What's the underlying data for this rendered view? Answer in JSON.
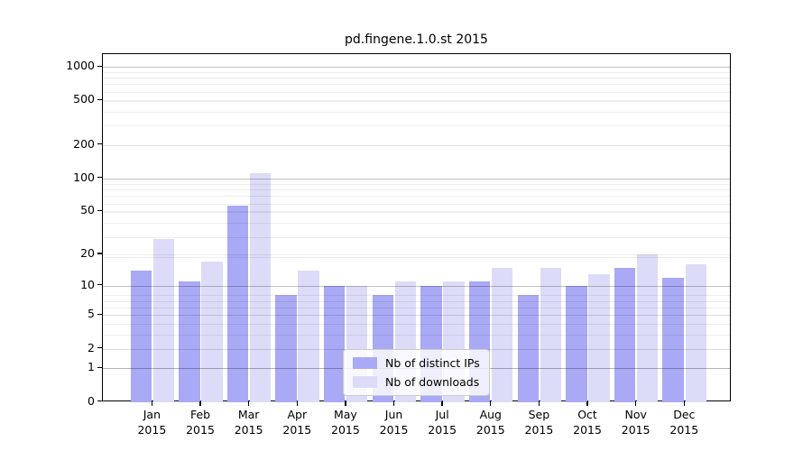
{
  "chart_data": {
    "type": "bar",
    "title": "pd.fingene.1.0.st 2015",
    "categories": [
      "Jan",
      "Feb",
      "Mar",
      "Apr",
      "May",
      "Jun",
      "Jul",
      "Aug",
      "Sep",
      "Oct",
      "Nov",
      "Dec"
    ],
    "category_second_line": "2015",
    "series": [
      {
        "name": "Nb of distinct IPs",
        "color": "#a9a9f5",
        "values": [
          14,
          11,
          56,
          8,
          10,
          8,
          10,
          11,
          8,
          10,
          15,
          12
        ]
      },
      {
        "name": "Nb of downloads",
        "color": "#dcdcf8",
        "values": [
          28,
          17,
          110,
          14,
          10,
          11,
          11,
          15,
          15,
          13,
          20,
          16
        ]
      }
    ],
    "xlabel": "",
    "ylabel": "",
    "yscale": "log10(value+1)",
    "yticks": [
      0,
      1,
      2,
      5,
      10,
      20,
      50,
      100,
      200,
      500,
      1000
    ],
    "major_gridlines_at": [
      1,
      10,
      100,
      1000
    ],
    "minor_grid_decades": [
      1,
      10,
      100
    ],
    "ylim": [
      0,
      1290
    ],
    "grid": true,
    "legend_position": "lower center",
    "colors": {
      "major_grid": "#c4c4c4",
      "minor_grid": "#ededed",
      "axis": "#000000",
      "background": "#ffffff",
      "legend_border": "#cccccc"
    }
  }
}
